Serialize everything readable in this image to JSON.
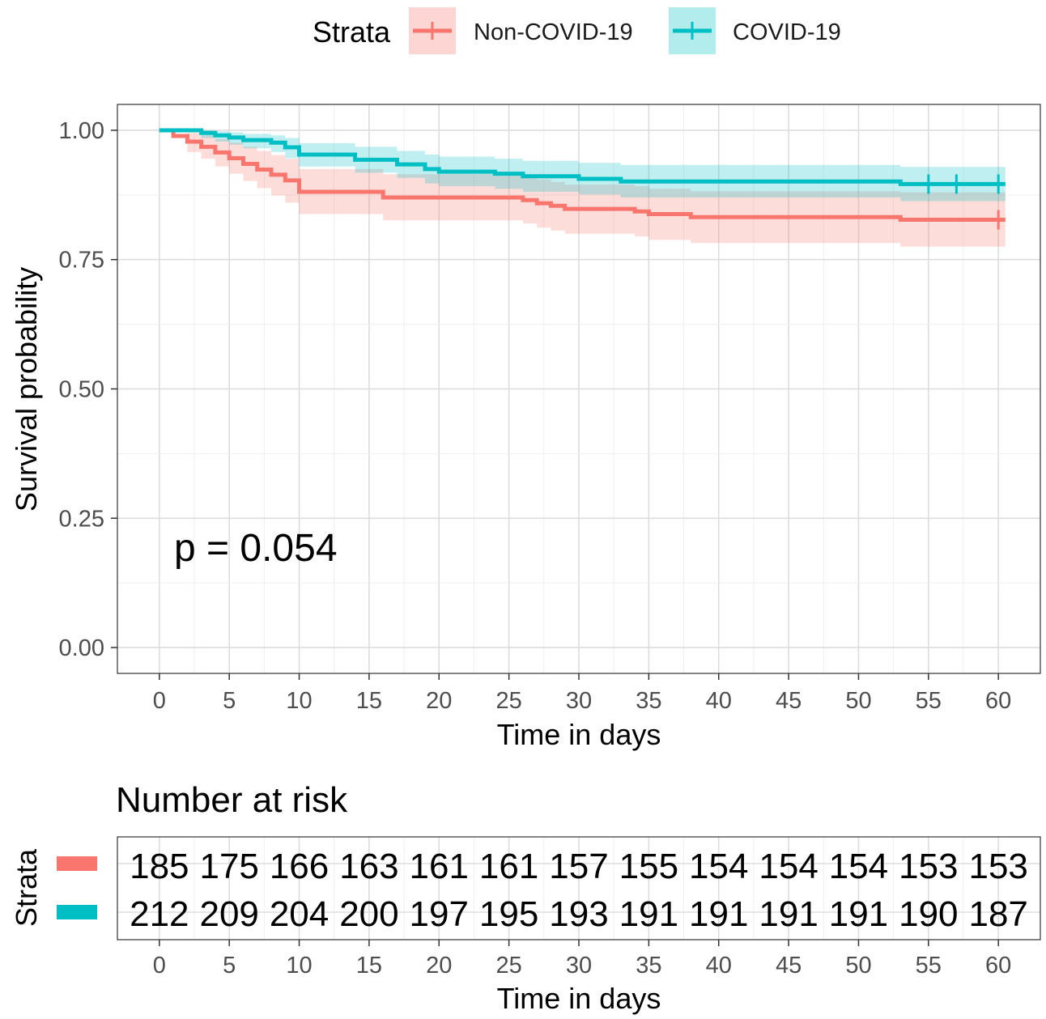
{
  "chart_data": [
    {
      "type": "line",
      "subtype": "kaplan-meier",
      "xlabel": "Time in days",
      "ylabel": "Survival probability",
      "xlim": [
        -3,
        63
      ],
      "ylim": [
        -0.05,
        1.05
      ],
      "xticks": [
        0,
        5,
        10,
        15,
        20,
        25,
        30,
        35,
        40,
        45,
        50,
        55,
        60
      ],
      "yticks": [
        0,
        0.25,
        0.5,
        0.75,
        1.0
      ],
      "ytick_labels": [
        "0.00",
        "0.25",
        "0.50",
        "0.75",
        "1.00"
      ],
      "grid": true,
      "annotation": "p = 0.054",
      "legend": {
        "title": "Strata",
        "position": "top"
      },
      "series": [
        {
          "name": "Non-COVID-19",
          "color": "#F8766D",
          "ribbon_color": "#F8766D",
          "steps": [
            [
              0,
              1.0
            ],
            [
              1,
              0.989
            ],
            [
              2,
              0.978
            ],
            [
              3,
              0.968
            ],
            [
              4,
              0.957
            ],
            [
              5,
              0.946
            ],
            [
              6,
              0.935
            ],
            [
              7,
              0.924
            ],
            [
              8,
              0.914
            ],
            [
              9,
              0.903
            ],
            [
              10,
              0.881
            ],
            [
              16,
              0.87
            ],
            [
              26,
              0.865
            ],
            [
              27,
              0.859
            ],
            [
              28,
              0.854
            ],
            [
              29,
              0.848
            ],
            [
              34,
              0.843
            ],
            [
              35,
              0.838
            ],
            [
              38,
              0.832
            ],
            [
              53,
              0.827
            ],
            [
              60.5,
              0.827
            ]
          ],
          "lower": [
            [
              0,
              1.0
            ],
            [
              2,
              0.958
            ],
            [
              3,
              0.945
            ],
            [
              4,
              0.93
            ],
            [
              5,
              0.916
            ],
            [
              6,
              0.902
            ],
            [
              7,
              0.888
            ],
            [
              8,
              0.874
            ],
            [
              9,
              0.86
            ],
            [
              10,
              0.838
            ],
            [
              16,
              0.826
            ],
            [
              26,
              0.82
            ],
            [
              27,
              0.812
            ],
            [
              28,
              0.806
            ],
            [
              29,
              0.8
            ],
            [
              34,
              0.795
            ],
            [
              35,
              0.788
            ],
            [
              38,
              0.782
            ],
            [
              53,
              0.775
            ],
            [
              60.5,
              0.775
            ]
          ],
          "upper": [
            [
              0,
              1.0
            ],
            [
              2,
              0.995
            ],
            [
              3,
              0.99
            ],
            [
              4,
              0.983
            ],
            [
              5,
              0.976
            ],
            [
              6,
              0.968
            ],
            [
              7,
              0.96
            ],
            [
              8,
              0.952
            ],
            [
              9,
              0.945
            ],
            [
              10,
              0.925
            ],
            [
              16,
              0.915
            ],
            [
              26,
              0.91
            ],
            [
              27,
              0.905
            ],
            [
              28,
              0.9
            ],
            [
              29,
              0.895
            ],
            [
              34,
              0.892
            ],
            [
              35,
              0.887
            ],
            [
              38,
              0.882
            ],
            [
              53,
              0.88
            ],
            [
              60.5,
              0.88
            ]
          ],
          "censor_times": [
            60
          ],
          "risk_table": [
            185,
            175,
            166,
            163,
            161,
            161,
            157,
            155,
            154,
            154,
            154,
            153,
            153
          ]
        },
        {
          "name": "COVID-19",
          "color": "#00BFC4",
          "ribbon_color": "#00BFC4",
          "steps": [
            [
              0,
              1.0
            ],
            [
              3,
              0.995
            ],
            [
              4,
              0.99
            ],
            [
              5,
              0.986
            ],
            [
              6,
              0.981
            ],
            [
              8,
              0.976
            ],
            [
              9,
              0.967
            ],
            [
              10,
              0.953
            ],
            [
              14,
              0.943
            ],
            [
              17,
              0.934
            ],
            [
              19,
              0.925
            ],
            [
              20,
              0.92
            ],
            [
              24,
              0.916
            ],
            [
              26,
              0.911
            ],
            [
              30,
              0.906
            ],
            [
              33,
              0.901
            ],
            [
              53,
              0.896
            ],
            [
              55,
              0.896
            ],
            [
              57,
              0.896
            ],
            [
              60.5,
              0.896
            ]
          ],
          "lower": [
            [
              0,
              1.0
            ],
            [
              3,
              0.985
            ],
            [
              4,
              0.978
            ],
            [
              5,
              0.972
            ],
            [
              6,
              0.965
            ],
            [
              8,
              0.958
            ],
            [
              9,
              0.946
            ],
            [
              10,
              0.93
            ],
            [
              14,
              0.918
            ],
            [
              17,
              0.908
            ],
            [
              19,
              0.897
            ],
            [
              20,
              0.892
            ],
            [
              24,
              0.887
            ],
            [
              26,
              0.881
            ],
            [
              30,
              0.876
            ],
            [
              33,
              0.87
            ],
            [
              53,
              0.863
            ],
            [
              60.5,
              0.863
            ]
          ],
          "upper": [
            [
              0,
              1.0
            ],
            [
              3,
              1.0
            ],
            [
              4,
              0.998
            ],
            [
              5,
              0.996
            ],
            [
              6,
              0.993
            ],
            [
              8,
              0.99
            ],
            [
              9,
              0.985
            ],
            [
              10,
              0.975
            ],
            [
              14,
              0.968
            ],
            [
              17,
              0.96
            ],
            [
              19,
              0.953
            ],
            [
              20,
              0.949
            ],
            [
              24,
              0.945
            ],
            [
              26,
              0.941
            ],
            [
              30,
              0.937
            ],
            [
              33,
              0.933
            ],
            [
              53,
              0.929
            ],
            [
              60.5,
              0.929
            ]
          ],
          "censor_times": [
            55,
            57,
            60
          ],
          "risk_table": [
            212,
            209,
            204,
            200,
            197,
            195,
            193,
            191,
            191,
            191,
            191,
            190,
            187
          ]
        }
      ]
    },
    {
      "type": "table",
      "title": "Number at risk",
      "ylabel": "Strata",
      "xlabel": "Time in days",
      "columns": [
        0,
        5,
        10,
        15,
        20,
        25,
        30,
        35,
        40,
        45,
        50,
        55,
        60
      ],
      "rows": [
        {
          "name": "Non-COVID-19",
          "color": "#F8766D",
          "values": [
            185,
            175,
            166,
            163,
            161,
            161,
            157,
            155,
            154,
            154,
            154,
            153,
            153
          ]
        },
        {
          "name": "COVID-19",
          "color": "#00BFC4",
          "values": [
            212,
            209,
            204,
            200,
            197,
            195,
            193,
            191,
            191,
            191,
            191,
            190,
            187
          ]
        }
      ]
    }
  ]
}
